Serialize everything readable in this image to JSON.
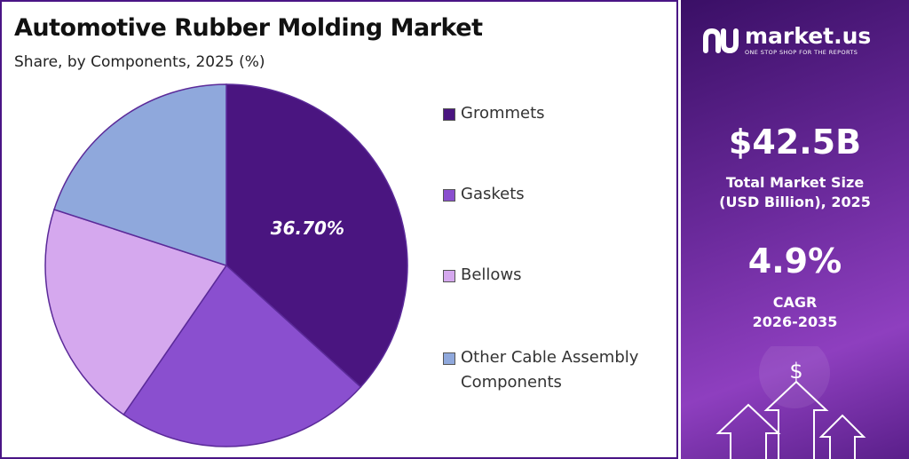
{
  "title": "Automotive Rubber Molding Market",
  "subtitle": "Share, by Components, 2025 (%)",
  "chart_data": {
    "type": "pie",
    "title": "Automotive Rubber Molding Market",
    "subtitle": "Share, by Components, 2025 (%)",
    "categories": [
      "Grommets",
      "Gaskets",
      "Bellows",
      "Other Cable Assembly Components"
    ],
    "values": [
      36.7,
      22.9,
      20.4,
      20.0
    ],
    "colors": [
      "#4a1580",
      "#8a4fcf",
      "#d5a8ee",
      "#8fa8dc"
    ],
    "data_labels": [
      "36.70%",
      "",
      "",
      ""
    ],
    "legend_position": "right"
  },
  "legend": [
    {
      "label": "Grommets",
      "color": "#4a1580"
    },
    {
      "label": "Gaskets",
      "color": "#8a4fcf"
    },
    {
      "label": "Bellows",
      "color": "#d5a8ee"
    },
    {
      "label": "Other Cable Assembly Components",
      "color": "#8fa8dc"
    }
  ],
  "brand": {
    "name": "market.us",
    "tagline": "ONE STOP SHOP FOR THE REPORTS"
  },
  "stats": {
    "market_size": "$42.5B",
    "market_size_label": "Total Market Size (USD Billion), 2025",
    "cagr": "4.9%",
    "cagr_label": "CAGR",
    "cagr_period": "2026-2035"
  },
  "icons": {
    "logo": "market-us-logo-icon",
    "decoration": "growth-arrows-dollar-icon"
  }
}
